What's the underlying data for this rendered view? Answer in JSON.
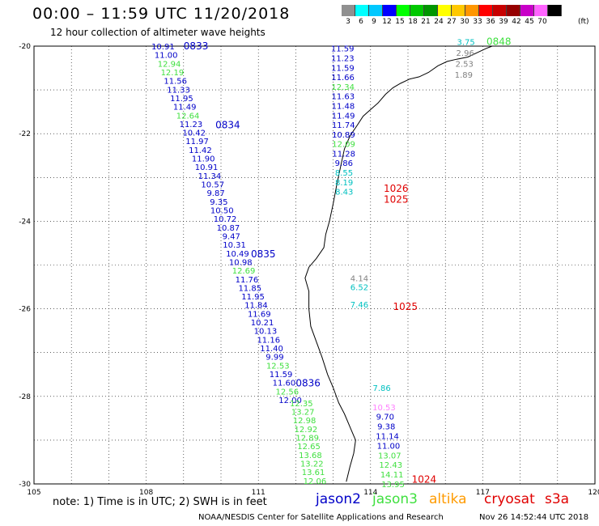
{
  "title": "00:00 – 11:59 UTC 11/20/2018",
  "subtitle": "12 hour collection of altimeter wave heights",
  "legend": {
    "unit": "(ft)",
    "scale": [
      {
        "label": "3",
        "color": "#909090"
      },
      {
        "label": "6",
        "color": "#00ffff"
      },
      {
        "label": "9",
        "color": "#00c8ff"
      },
      {
        "label": "12",
        "color": "#0000ff"
      },
      {
        "label": "15",
        "color": "#00ff00"
      },
      {
        "label": "18",
        "color": "#00c800"
      },
      {
        "label": "21",
        "color": "#009600"
      },
      {
        "label": "24",
        "color": "#ffff00"
      },
      {
        "label": "27",
        "color": "#ffc800"
      },
      {
        "label": "30",
        "color": "#ff9600"
      },
      {
        "label": "33",
        "color": "#ff0000"
      },
      {
        "label": "36",
        "color": "#c80000"
      },
      {
        "label": "39",
        "color": "#960000"
      },
      {
        "label": "42",
        "color": "#c800c8"
      },
      {
        "label": "45",
        "color": "#ff64ff"
      },
      {
        "label": "70",
        "color": "#000000"
      }
    ]
  },
  "map": {
    "lon_range": [
      105,
      120
    ],
    "lat_range": [
      -30,
      -20
    ],
    "lon_labels": [
      "105",
      "108",
      "111",
      "114",
      "117",
      "120"
    ],
    "lat_labels": [
      "-20",
      "-22",
      "-24",
      "-26",
      "-28",
      "-30"
    ]
  },
  "colors": {
    "jason2": "#0000c8",
    "jason3": "#40e040",
    "altika": "#ff9b00",
    "cryosat": "#e00000",
    "s3a": "#e00000",
    "gray": "#808080",
    "cyan": "#00c0c0",
    "pink": "#ff80ff"
  },
  "tracks": [
    {
      "lon_start": 108.45,
      "lat_start": -20.0,
      "lon_step": 0.083,
      "lat_step": -0.197,
      "values": [
        {
          "v": "10.91",
          "c": "jason2"
        },
        {
          "v": "11.00",
          "c": "jason2"
        },
        {
          "v": "12.94",
          "c": "jason3"
        },
        {
          "v": "12.19",
          "c": "jason3"
        },
        {
          "v": "11.56",
          "c": "jason2"
        },
        {
          "v": "11.33",
          "c": "jason2"
        },
        {
          "v": "11.95",
          "c": "jason2"
        },
        {
          "v": "11.49",
          "c": "jason2"
        },
        {
          "v": "12.64",
          "c": "jason3"
        },
        {
          "v": "11.23",
          "c": "jason2"
        },
        {
          "v": "10.42",
          "c": "jason2"
        },
        {
          "v": "11.97",
          "c": "jason2"
        },
        {
          "v": "11.42",
          "c": "jason2"
        },
        {
          "v": "11.90",
          "c": "jason2"
        },
        {
          "v": "10.91",
          "c": "jason2"
        },
        {
          "v": "11.34",
          "c": "jason2"
        },
        {
          "v": "10.57",
          "c": "jason2"
        },
        {
          "v": "9.87",
          "c": "jason2"
        },
        {
          "v": "9.35",
          "c": "jason2"
        },
        {
          "v": "10.50",
          "c": "jason2"
        },
        {
          "v": "10.72",
          "c": "jason2"
        },
        {
          "v": "10.87",
          "c": "jason2"
        },
        {
          "v": "9.47",
          "c": "jason2"
        },
        {
          "v": "10.31",
          "c": "jason2"
        },
        {
          "v": "10.49",
          "c": "jason2"
        },
        {
          "v": "10.98",
          "c": "jason2"
        },
        {
          "v": "12.69",
          "c": "jason3"
        },
        {
          "v": "11.76",
          "c": "jason2"
        },
        {
          "v": "11.85",
          "c": "jason2"
        },
        {
          "v": "11.95",
          "c": "jason2"
        },
        {
          "v": "11.84",
          "c": "jason2"
        },
        {
          "v": "11.69",
          "c": "jason2"
        },
        {
          "v": "10.21",
          "c": "jason2"
        },
        {
          "v": "10.13",
          "c": "jason2"
        },
        {
          "v": "11.16",
          "c": "jason2"
        },
        {
          "v": "11.40",
          "c": "jason2"
        },
        {
          "v": "9.99",
          "c": "jason2"
        },
        {
          "v": "12.53",
          "c": "jason3"
        },
        {
          "v": "11.59",
          "c": "jason2"
        },
        {
          "v": "11.60",
          "c": "jason2"
        },
        {
          "v": "12.56",
          "c": "jason3"
        },
        {
          "v": "12.00",
          "c": "jason2"
        }
      ]
    },
    {
      "lon_start": 112.15,
      "lat_start": -28.15,
      "lon_step": 0.04,
      "lat_step": -0.197,
      "values": [
        {
          "v": "12.35",
          "c": "jason3"
        },
        {
          "v": "13.27",
          "c": "jason3"
        },
        {
          "v": "12.98",
          "c": "jason3"
        },
        {
          "v": "12.92",
          "c": "jason3"
        },
        {
          "v": "12.89",
          "c": "jason3"
        },
        {
          "v": "12.65",
          "c": "jason3"
        },
        {
          "v": "13.68",
          "c": "jason3"
        },
        {
          "v": "13.22",
          "c": "jason3"
        },
        {
          "v": "13.61",
          "c": "jason3"
        },
        {
          "v": "12.06",
          "c": "jason3"
        }
      ]
    },
    {
      "lon_start": 113.25,
      "lat_start": -20.05,
      "lon_step": 0.003,
      "lat_step": -0.218,
      "values": [
        {
          "v": "11.59",
          "c": "jason2"
        },
        {
          "v": "11.23",
          "c": "jason2"
        },
        {
          "v": "11.59",
          "c": "jason2"
        },
        {
          "v": "11.66",
          "c": "jason2"
        },
        {
          "v": "12.34",
          "c": "jason3"
        },
        {
          "v": "11.63",
          "c": "jason2"
        },
        {
          "v": "11.48",
          "c": "jason2"
        },
        {
          "v": "11.49",
          "c": "jason2"
        },
        {
          "v": "11.74",
          "c": "jason2"
        },
        {
          "v": "10.89",
          "c": "jason2"
        },
        {
          "v": "12.09",
          "c": "jason3"
        },
        {
          "v": "11.28",
          "c": "jason2"
        },
        {
          "v": "9.86",
          "c": "jason2"
        },
        {
          "v": "8.55",
          "c": "cyan"
        },
        {
          "v": "8.19",
          "c": "cyan"
        },
        {
          "v": "8.43",
          "c": "cyan"
        }
      ]
    },
    {
      "lon_start": 113.7,
      "lat_start": -25.3,
      "lon_step": 0.0,
      "lat_step": -0.2,
      "values": [
        {
          "v": "4.14",
          "c": "gray"
        },
        {
          "v": "6.52",
          "c": "cyan"
        },
        {
          "v": "",
          "c": "gray"
        },
        {
          "v": "7.46",
          "c": "cyan"
        }
      ]
    },
    {
      "lon_start": 114.3,
      "lat_start": -27.8,
      "lon_step": 0.03,
      "lat_step": -0.22,
      "values": [
        {
          "v": "7.86",
          "c": "cyan"
        },
        {
          "v": "",
          "c": "cyan"
        },
        {
          "v": "10.53",
          "c": "pink"
        },
        {
          "v": "9.70",
          "c": "jason2"
        },
        {
          "v": "9.38",
          "c": "jason2"
        },
        {
          "v": "11.14",
          "c": "jason2"
        },
        {
          "v": "11.00",
          "c": "jason2"
        },
        {
          "v": "13.07",
          "c": "jason3"
        },
        {
          "v": "12.43",
          "c": "jason3"
        },
        {
          "v": "14.11",
          "c": "jason3"
        },
        {
          "v": "13.95",
          "c": "jason3"
        }
      ]
    },
    {
      "lon_start": 116.55,
      "lat_start": -19.9,
      "lon_step": -0.02,
      "lat_step": -0.25,
      "values": [
        {
          "v": "3.75",
          "c": "cyan"
        },
        {
          "v": "2.96",
          "c": "gray"
        },
        {
          "v": "2.53",
          "c": "gray"
        },
        {
          "v": "1.89",
          "c": "gray"
        }
      ]
    }
  ],
  "time_labels": [
    {
      "text": "0833",
      "lon": 109.0,
      "lat": -20.0,
      "c": "jason2"
    },
    {
      "text": "0834",
      "lon": 109.85,
      "lat": -21.8,
      "c": "jason2"
    },
    {
      "text": "0835",
      "lon": 110.8,
      "lat": -24.75,
      "c": "jason2"
    },
    {
      "text": "0836",
      "lon": 112.0,
      "lat": -27.7,
      "c": "jason2"
    },
    {
      "text": "0848",
      "lon": 117.1,
      "lat": -19.9,
      "c": "jason3"
    },
    {
      "text": "1026",
      "lon": 114.35,
      "lat": -23.25,
      "c": "cryosat"
    },
    {
      "text": "1025",
      "lon": 114.35,
      "lat": -23.5,
      "c": "cryosat"
    },
    {
      "text": "1025",
      "lon": 114.6,
      "lat": -25.95,
      "c": "cryosat"
    },
    {
      "text": "1024",
      "lon": 115.1,
      "lat": -29.9,
      "c": "cryosat"
    }
  ],
  "coast": [
    [
      113.35,
      -29.95
    ],
    [
      113.45,
      -29.6
    ],
    [
      113.55,
      -29.3
    ],
    [
      113.6,
      -29.0
    ],
    [
      113.45,
      -28.7
    ],
    [
      113.3,
      -28.4
    ],
    [
      113.15,
      -28.15
    ],
    [
      113.0,
      -27.8
    ],
    [
      112.85,
      -27.5
    ],
    [
      112.7,
      -27.1
    ],
    [
      112.55,
      -26.75
    ],
    [
      112.4,
      -26.4
    ],
    [
      112.35,
      -26.0
    ],
    [
      112.35,
      -25.6
    ],
    [
      112.25,
      -25.3
    ],
    [
      112.35,
      -25.05
    ],
    [
      112.55,
      -24.85
    ],
    [
      112.75,
      -24.6
    ],
    [
      112.8,
      -24.3
    ],
    [
      112.9,
      -24.0
    ],
    [
      113.0,
      -23.6
    ],
    [
      113.1,
      -23.15
    ],
    [
      113.2,
      -22.75
    ],
    [
      113.3,
      -22.35
    ],
    [
      113.45,
      -22.05
    ],
    [
      113.65,
      -21.8
    ],
    [
      113.8,
      -21.6
    ],
    [
      114.0,
      -21.45
    ],
    [
      114.2,
      -21.3
    ],
    [
      114.4,
      -21.1
    ],
    [
      114.6,
      -20.95
    ],
    [
      114.8,
      -20.85
    ],
    [
      115.05,
      -20.75
    ],
    [
      115.3,
      -20.7
    ],
    [
      115.55,
      -20.6
    ],
    [
      115.8,
      -20.45
    ],
    [
      116.05,
      -20.35
    ],
    [
      116.3,
      -20.3
    ],
    [
      116.6,
      -20.25
    ],
    [
      116.85,
      -20.15
    ],
    [
      117.1,
      -20.05
    ],
    [
      117.25,
      -20.0
    ]
  ],
  "note": "note:  1) Time is in UTC;  2) SWH is in feet",
  "satellites": {
    "jason2": "jason2",
    "jason3": "jason3",
    "altika": "altika",
    "cryosat": "cryosat",
    "s3a": "s3a"
  },
  "footer": {
    "center": "NOAA/NESDIS Center for Satellite Applications and Research",
    "time": "Nov 26 14:52:44 UTC 2018"
  }
}
